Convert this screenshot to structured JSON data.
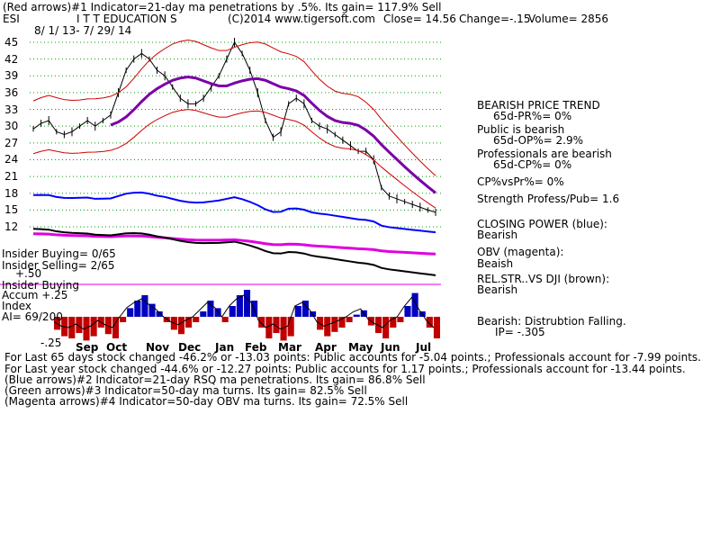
{
  "header": {
    "line1": "(Red arrows)#1 Indicator=21-day ma penetrations by .5%.  Its gain= 117.9% Sell",
    "ticker": "ESI",
    "company": "I T T EDUCATION S",
    "copyright": "(C)2014 www.tigersoft.com",
    "close": "Close=  14.56",
    "change": "Change=-.15",
    "volume": "Volume= 2856",
    "date_range": "8/ 1/ 13- 7/ 29/ 14"
  },
  "chart_data": {
    "type": "line",
    "price_ticks": [
      "45",
      "42",
      "39",
      "36",
      "33",
      "30",
      "27",
      "24",
      "21",
      "18",
      "15",
      "12"
    ],
    "months": [
      "Sep",
      "Oct",
      "Nov",
      "Dec",
      "Jan",
      "Feb",
      "Mar",
      "Apr",
      "May",
      "Jun",
      "Jul"
    ],
    "price_close": [
      29.5,
      30.5,
      31,
      29,
      28.5,
      29,
      30,
      31,
      30,
      31,
      32,
      36,
      40,
      42,
      43,
      42,
      40,
      39,
      37,
      35,
      34,
      34,
      35,
      37,
      39,
      42,
      45,
      43,
      40,
      36,
      31,
      28,
      29,
      34,
      35,
      34,
      31,
      30,
      29.5,
      28.5,
      27.5,
      26.5,
      25.5,
      25.5,
      24,
      19,
      17.5,
      17,
      16.5,
      16,
      15.5,
      15,
      14.6
    ],
    "indicators": {
      "closing_power_label": "CLOSING POWER (blue):",
      "closing_power_value": "Bearish",
      "obv_label": "OBV (magenta):",
      "obv_value": "Beaish",
      "relstr_label": "REL.STR..VS DJI (brown):",
      "relstr_value": "Bearish"
    },
    "accum_labels": {
      "insider_buying": "Insider Buying= 0/65",
      "insider_selling": "Insider Selling= 2/65",
      "plus50": "+.50",
      "insider_buying2": "Insider Buying",
      "accum": "Accum  +.25",
      "index": "Index",
      "ai": "AI= 69/200",
      "minus25": "-.25"
    },
    "accum_values": [
      -0.12,
      -0.18,
      -0.2,
      -0.15,
      -0.22,
      -0.18,
      -0.1,
      -0.16,
      -0.2,
      -0.05,
      0.08,
      0.15,
      0.2,
      0.12,
      0.05,
      -0.05,
      -0.12,
      -0.16,
      -0.1,
      -0.05,
      0.05,
      0.15,
      0.08,
      -0.05,
      0.1,
      0.2,
      0.25,
      0.15,
      -0.1,
      -0.2,
      -0.15,
      -0.22,
      -0.18,
      0.1,
      0.15,
      0.05,
      -0.12,
      -0.18,
      -0.14,
      -0.1,
      -0.05,
      0.02,
      0.06,
      -0.08,
      -0.15,
      -0.2,
      -0.1,
      -0.05,
      0.1,
      0.22,
      0.05,
      -0.1,
      -0.2
    ]
  },
  "right_panel": {
    "trend_title": "BEARISH PRICE TREND",
    "pr": "65d-PR%= 0%",
    "public": "Public is bearish",
    "op": "65d-OP%= 2.9%",
    "pros": "Professionals are bearish",
    "cp": "65d-CP%= 0%",
    "cpvspr": "CP%vsPr%=  0%",
    "strength": "Strength Profess/Pub= 1.6",
    "distribution": "Bearish: Distrubtion Falling.",
    "ip": "IP= -.305"
  },
  "footer": {
    "line1": "For Last 65 days stock changed -46.2% or -13.03 points:  Public accounts for -5.04 points.;  Professionals account for -7.99 points.",
    "line2": "For Last year stock changed -44.6% or -12.27 points:  Public accounts for  1.17 points.;  Professionals account for -13.44 points.",
    "line3": "(Blue arrows)#2 Indicator=21-day RSQ ma penetrations.  Its gain= 86.8% Sell",
    "line4": "(Green arrows)#3 Indicator=50-day ma turns.  Its gain= 82.5% Sell",
    "line5": "(Magenta arrows)#4 Indicator=50-day OBV ma turns.  Its gain= 72.5% Sell"
  },
  "colors": {
    "red": "#d00000",
    "blue": "#0000ff",
    "magenta": "#e000e0",
    "purple": "#7a00a8",
    "green_grid": "#00a000",
    "accum_red": "#c00000",
    "accum_blue": "#0000c0"
  }
}
